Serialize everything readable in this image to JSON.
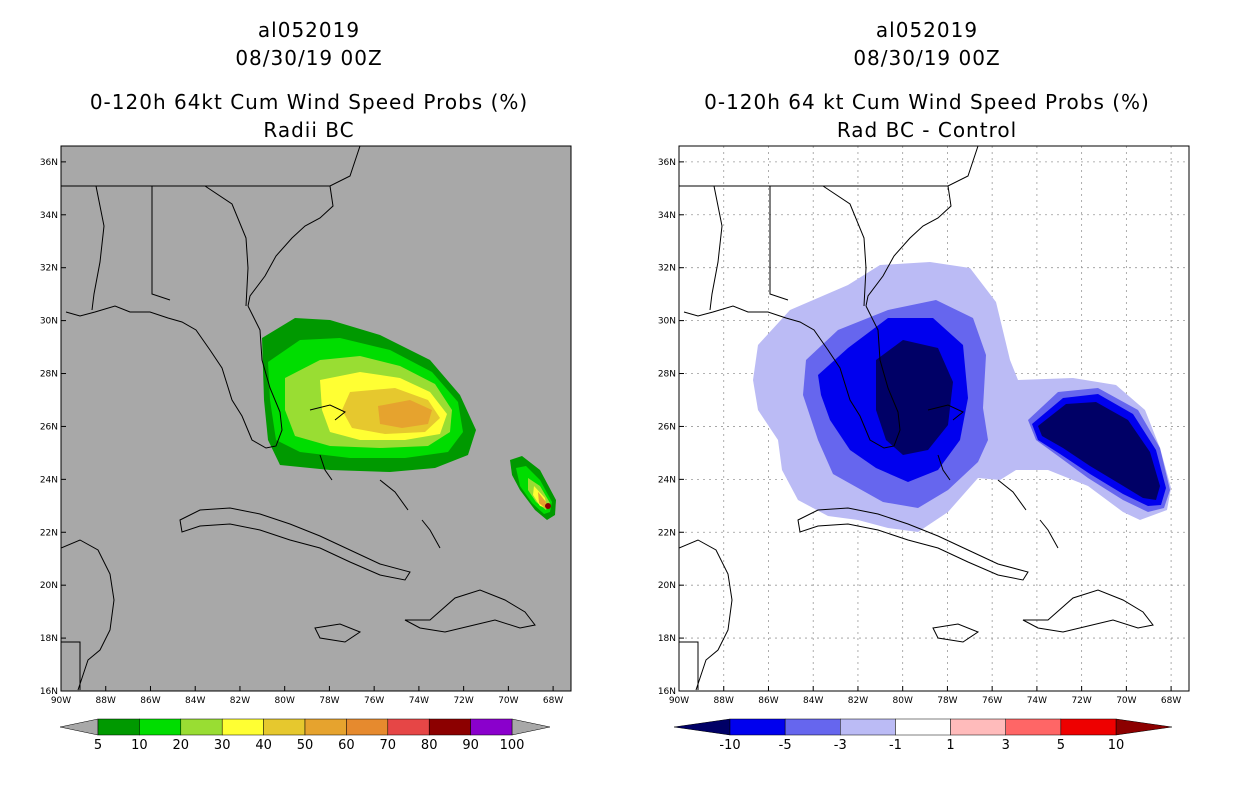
{
  "left_panel": {
    "storm_id": "al052019",
    "datetime": "08/30/19 00Z",
    "product": "0-120h 64kt Cum Wind Speed Probs (%)",
    "subtitle": "Radii BC",
    "colorbar": {
      "labels": [
        "5",
        "10",
        "20",
        "30",
        "40",
        "50",
        "60",
        "70",
        "80",
        "90",
        "100"
      ],
      "colors": [
        "#009900",
        "#00dd00",
        "#99dd33",
        "#ffff33",
        "#e6c82e",
        "#e6a32e",
        "#e68a2e",
        "#e64646",
        "#8c0000",
        "#8a00cc"
      ]
    }
  },
  "right_panel": {
    "storm_id": "al052019",
    "datetime": "08/30/19 00Z",
    "product": "0-120h 64 kt Cum Wind Speed Probs (%)",
    "subtitle": "Rad BC - Control",
    "colorbar": {
      "labels": [
        "-10",
        "-5",
        "-3",
        "-1",
        "1",
        "3",
        "5",
        "10"
      ],
      "colors": [
        "#000066",
        "#0000ee",
        "#6666ee",
        "#bbbbf5",
        "#ffffff",
        "#ffbbbb",
        "#ff6666",
        "#ee0000",
        "#8c0000"
      ]
    }
  },
  "axes": {
    "lat_labels": [
      "16N",
      "18N",
      "20N",
      "22N",
      "24N",
      "26N",
      "28N",
      "30N",
      "32N",
      "34N",
      "36N"
    ],
    "lon_labels": [
      "90W",
      "88W",
      "86W",
      "84W",
      "82W",
      "80W",
      "78W",
      "76W",
      "74W",
      "72W",
      "70W",
      "68W"
    ]
  },
  "colors": {
    "map_background_left": "#a8a8a8",
    "map_background_right": "#ffffff",
    "coastline": "#000000",
    "grid": "#999999"
  }
}
